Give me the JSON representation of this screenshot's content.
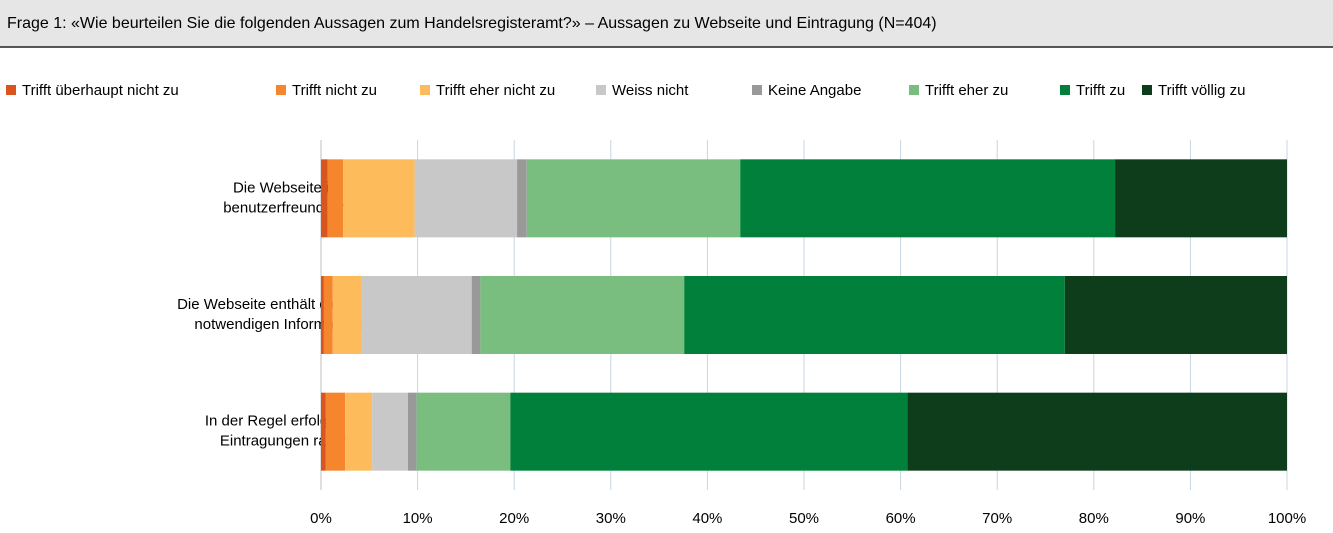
{
  "chart_data": {
    "type": "stacked-barh",
    "title": "Frage 1: «Wie beurteilen Sie die folgenden Aussagen zum Handelsregisteramt?» – Aussagen zu Webseite und Eintragung (N=404)",
    "categories": [
      [
        "Die Webseite ist",
        "benutzerfreundlich."
      ],
      [
        "Die Webseite enthält die für mich",
        "notwendigen Informationen."
      ],
      [
        "In der Regel erfolgen die",
        "Eintragungen rasch."
      ]
    ],
    "series": [
      {
        "name": "Trifft überhaupt nicht zu",
        "color": "#d9541e",
        "values": [
          0.7,
          0.3,
          0.5
        ]
      },
      {
        "name": "Trifft nicht zu",
        "color": "#f5862e",
        "values": [
          1.6,
          0.9,
          2.0
        ]
      },
      {
        "name": "Trifft eher nicht zu",
        "color": "#fdbb5c",
        "values": [
          7.4,
          3.0,
          2.8
        ]
      },
      {
        "name": "Weiss nicht",
        "color": "#c8c8c8",
        "values": [
          10.6,
          11.4,
          3.7
        ]
      },
      {
        "name": "Keine Angabe",
        "color": "#999999",
        "values": [
          1.0,
          0.9,
          0.9
        ]
      },
      {
        "name": "Trifft eher zu",
        "color": "#79bd7f",
        "values": [
          22.1,
          21.1,
          9.7
        ]
      },
      {
        "name": "Trifft zu",
        "color": "#00803a",
        "values": [
          38.8,
          39.4,
          41.1
        ]
      },
      {
        "name": "Trifft völlig zu",
        "color": "#0d3d1b",
        "values": [
          17.8,
          23.0,
          39.3
        ]
      }
    ],
    "xlim": [
      0,
      100
    ],
    "xticks": [
      {
        "value": 0,
        "label": "0%"
      },
      {
        "value": 10,
        "label": "10%"
      },
      {
        "value": 20,
        "label": "20%"
      },
      {
        "value": 30,
        "label": "30%"
      },
      {
        "value": 40,
        "label": "40%"
      },
      {
        "value": 50,
        "label": "50%"
      },
      {
        "value": 60,
        "label": "60%"
      },
      {
        "value": 70,
        "label": "70%"
      },
      {
        "value": 80,
        "label": "80%"
      },
      {
        "value": 90,
        "label": "90%"
      },
      {
        "value": 100,
        "label": "100%"
      }
    ],
    "grid": true,
    "legend": "top"
  }
}
